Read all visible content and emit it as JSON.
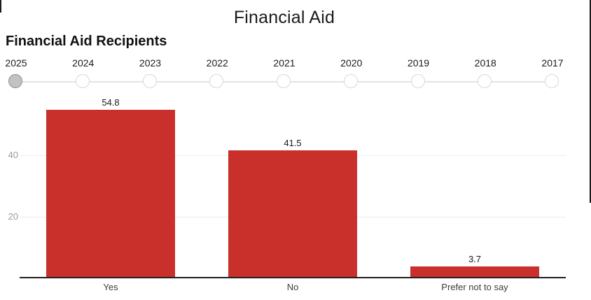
{
  "header": {
    "title": "Financial Aid",
    "subtitle": "Financial Aid Recipients"
  },
  "slider": {
    "years": [
      "2025",
      "2024",
      "2023",
      "2022",
      "2021",
      "2020",
      "2019",
      "2018",
      "2017"
    ],
    "selected_year": "2025",
    "selected_index": 0
  },
  "chart_data": {
    "type": "bar",
    "title": "Financial Aid Recipients",
    "categories": [
      "Yes",
      "No",
      "Prefer not to say"
    ],
    "values": [
      54.8,
      41.5,
      3.7
    ],
    "value_labels": [
      "54.8",
      "41.5",
      "3.7"
    ],
    "yticks": [
      "20",
      "40"
    ],
    "ytick_values": [
      20,
      40
    ],
    "ylim": [
      0,
      60
    ],
    "xlabel": "",
    "ylabel": "",
    "grid": true,
    "legend": false,
    "bar_color": "#c9302c"
  },
  "colors": {
    "bar": "#c9302c",
    "axis_line": "#1f1f1f",
    "gridline": "#ececec",
    "tick_label": "#9a9a9a",
    "selected_dot_fill": "#c2c2c2",
    "selected_dot_border": "#8f8f8f",
    "dot_border": "#d8d8d8",
    "track": "#e3e3e3"
  }
}
